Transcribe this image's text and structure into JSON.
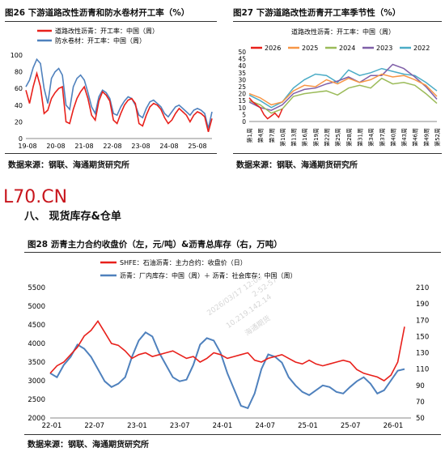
{
  "logo_text": "L70.CN",
  "watermark": [
    "2026/03/17 12:00",
    "10.219.142.14",
    "2-52-57",
    "海通期货"
  ],
  "fig26": {
    "title": "图26  下游道路改性沥青和防水卷材开工率（%）",
    "legend": [
      "道路改性沥青：开工率：中国（周）",
      "防水卷材：开工率：中国（周）"
    ],
    "source": "数据来源：钢联、海通期货研究所"
  },
  "fig27": {
    "title": "图27  下游道路改性沥青开工率季节性（%）",
    "subtitle": "道路改性沥青：开工率：中国（周）",
    "source": "数据来源：钢联、海通期货研究所"
  },
  "section_heading": "八、  现货库存&仓单",
  "fig28": {
    "title": "图28  沥青主力合约收盘价（左，元/吨）&沥青总库存（右，万吨）",
    "legend": [
      "SHFE：石油沥青：主力合约：收盘价（日）",
      "沥青：厂内库存：中国（周）＋ 沥青：社会库存：中国（周）"
    ],
    "source": "数据来源：钢联、海通期货研究所"
  },
  "colors": {
    "red": "#e8201b",
    "blue": "#4f81bd",
    "green": "#9bbb59",
    "purple": "#7f5fa8",
    "teal": "#4bacc6",
    "orange": "#f79646"
  },
  "chart_data": [
    {
      "type": "line",
      "title": "图26  下游道路改性沥青和防水卷材开工率（%）",
      "x_ticks": [
        "19-08",
        "20-08",
        "21-08",
        "22-08",
        "23-08",
        "24-08",
        "25-08"
      ],
      "ylim": [
        0,
        100
      ],
      "y_ticks": [
        0,
        20,
        40,
        60,
        80,
        100
      ],
      "series": [
        {
          "name": "道路改性沥青：开工率：中国（周）",
          "values": [
            58,
            42,
            62,
            78,
            62,
            30,
            34,
            48,
            55,
            60,
            62,
            20,
            18,
            35,
            48,
            56,
            62,
            48,
            28,
            22,
            45,
            56,
            52,
            45,
            22,
            18,
            30,
            40,
            46,
            48,
            42,
            18,
            15,
            28,
            38,
            42,
            40,
            35,
            25,
            18,
            22,
            30,
            36,
            32,
            28,
            20,
            28,
            32,
            30,
            26,
            8,
            24
          ]
        },
        {
          "name": "防水卷材：开工率：中国（周）",
          "values": [
            62,
            70,
            85,
            95,
            90,
            60,
            42,
            72,
            80,
            84,
            76,
            40,
            35,
            62,
            72,
            76,
            70,
            55,
            38,
            30,
            50,
            58,
            55,
            48,
            30,
            28,
            38,
            45,
            50,
            48,
            40,
            28,
            25,
            36,
            44,
            46,
            42,
            38,
            30,
            26,
            32,
            38,
            40,
            36,
            32,
            28,
            34,
            36,
            34,
            30,
            12,
            32
          ]
        }
      ]
    },
    {
      "type": "line",
      "title": "图27  下游道路改性沥青开工率季节性（%）",
      "x_ticks": [
        "第1周",
        "第4周",
        "第7周",
        "第10周",
        "第13周",
        "第16周",
        "第19周",
        "第22周",
        "第25周",
        "第28周",
        "第31周",
        "第34周",
        "第37周",
        "第40周",
        "第43周",
        "第46周",
        "第49周",
        "第52周"
      ],
      "ylim": [
        0,
        50
      ],
      "y_ticks": [
        0,
        5,
        10,
        15,
        20,
        25,
        30,
        35,
        40,
        45,
        50
      ],
      "series": [
        {
          "name": "2026",
          "x": [
            1,
            2,
            3,
            4,
            5,
            6,
            7,
            8,
            9,
            10
          ],
          "values": [
            17,
            14,
            12,
            10,
            5,
            2,
            4,
            6,
            3,
            9
          ]
        },
        {
          "name": "2025",
          "x": [
            1,
            4,
            7,
            10,
            13,
            16,
            19,
            22,
            25,
            28,
            31,
            34,
            37,
            40,
            43,
            46,
            49,
            52
          ],
          "values": [
            20,
            17,
            12,
            14,
            22,
            26,
            25,
            30,
            27,
            31,
            28,
            30,
            34,
            32,
            33,
            30,
            26,
            18
          ]
        },
        {
          "name": "2024",
          "x": [
            1,
            4,
            7,
            10,
            13,
            16,
            19,
            22,
            25,
            28,
            31,
            34,
            37,
            40,
            43,
            46,
            49,
            52
          ],
          "values": [
            15,
            12,
            6,
            9,
            18,
            20,
            21,
            22,
            19,
            24,
            26,
            24,
            31,
            27,
            28,
            26,
            20,
            13
          ]
        },
        {
          "name": "2023",
          "x": [
            1,
            4,
            7,
            10,
            13,
            16,
            19,
            22,
            25,
            28,
            31,
            34,
            37,
            40,
            43,
            46,
            49,
            52
          ],
          "values": [
            14,
            10,
            8,
            12,
            20,
            23,
            24,
            27,
            29,
            32,
            28,
            33,
            33,
            41,
            38,
            32,
            25,
            16
          ]
        },
        {
          "name": "2022",
          "x": [
            1,
            4,
            7,
            10,
            13,
            16,
            19,
            22,
            25,
            28,
            31,
            34,
            37,
            40,
            43,
            46,
            49,
            52
          ],
          "values": [
            19,
            15,
            10,
            14,
            24,
            30,
            34,
            33,
            28,
            37,
            33,
            35,
            38,
            36,
            34,
            33,
            28,
            22
          ]
        }
      ]
    },
    {
      "type": "line",
      "title": "图28  沥青主力合约收盘价（左，元/吨）&沥青总库存（右，万吨）",
      "x_ticks": [
        "22-01",
        "22-07",
        "23-01",
        "23-07",
        "24-01",
        "24-07",
        "25-01",
        "25-07",
        "26-01"
      ],
      "ylim": [
        2000,
        5500
      ],
      "y_ticks": [
        2000,
        2500,
        3000,
        3500,
        4000,
        4500,
        5000,
        5500
      ],
      "y2lim": [
        50,
        210
      ],
      "y2_ticks": [
        50,
        70,
        90,
        110,
        130,
        150,
        170,
        190,
        210
      ],
      "series": [
        {
          "name": "SHFE：石油沥青：主力合约：收盘价（日）",
          "axis": "left",
          "values": [
            3200,
            3400,
            3500,
            3700,
            3900,
            4200,
            4350,
            4600,
            4300,
            4000,
            3950,
            3800,
            3600,
            3700,
            3750,
            3650,
            3700,
            3750,
            3800,
            3700,
            3600,
            3650,
            3500,
            3600,
            3750,
            3700,
            3600,
            3650,
            3700,
            3750,
            3550,
            3500,
            3600,
            3650,
            3700,
            3600,
            3500,
            3450,
            3550,
            3450,
            3400,
            3450,
            3500,
            3550,
            3500,
            3300,
            3200,
            3150,
            3100,
            3000,
            3150,
            3500,
            4450
          ]
        },
        {
          "name": "沥青：厂内库存：中国（周）＋ 沥青：社会库存：中国（周）",
          "axis": "right",
          "values": [
            105,
            100,
            115,
            125,
            140,
            135,
            125,
            110,
            95,
            88,
            92,
            100,
            125,
            145,
            155,
            150,
            130,
            115,
            100,
            95,
            97,
            115,
            140,
            148,
            145,
            130,
            105,
            85,
            65,
            62,
            80,
            110,
            128,
            125,
            118,
            100,
            90,
            82,
            78,
            84,
            90,
            88,
            82,
            80,
            88,
            95,
            100,
            92,
            80,
            84,
            96,
            108,
            110
          ]
        }
      ]
    }
  ]
}
